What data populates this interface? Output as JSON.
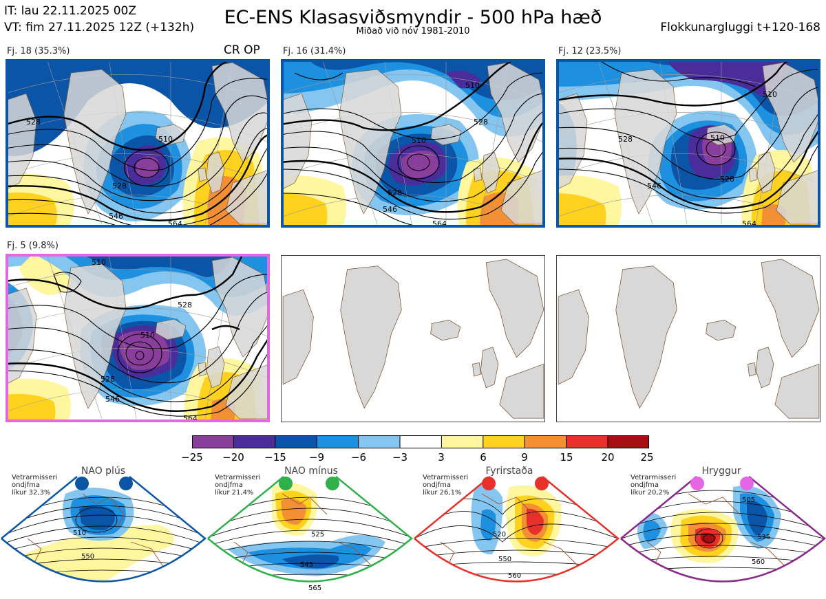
{
  "header": {
    "init_time": "IT: lau 22.11.2025 00Z",
    "valid_time": "VT: fim 27.11.2025 12Z  (+132h)",
    "title": "EC-ENS Klasasviðsmyndir - 500 hPa hæð",
    "subtitle": "Miðað við nóv 1981-2010",
    "window": "Flokkunargluggi t+120-168"
  },
  "clusters": [
    {
      "label": "Fj. 18 (35.3%)",
      "tag": "CR OP",
      "frame_color": "#0a55a5",
      "contours": [
        "510",
        "528",
        "546",
        "564",
        "528"
      ]
    },
    {
      "label": "Fj. 16 (31.4%)",
      "tag": "",
      "frame_color": "#0a55a5",
      "contours": [
        "510",
        "528",
        "546",
        "564",
        "510",
        "528"
      ]
    },
    {
      "label": "Fj. 12 (23.5%)",
      "tag": "",
      "frame_color": "#0a55a5",
      "contours": [
        "510",
        "528",
        "546",
        "564",
        "510",
        "528"
      ]
    },
    {
      "label": "Fj. 5 (9.8%)",
      "tag": "",
      "frame_color": "#e466e4",
      "contours": [
        "510",
        "528",
        "546",
        "564",
        "510",
        "528"
      ]
    }
  ],
  "colorbar": {
    "ticks": [
      "−25",
      "−20",
      "−15",
      "−9",
      "−6",
      "−3",
      "3",
      "6",
      "9",
      "15",
      "20",
      "25"
    ],
    "colors": [
      "#8a3e9c",
      "#4a2c9a",
      "#0b55a8",
      "#1e90e0",
      "#84c6f0",
      "#ffffff",
      "#fff6a0",
      "#ffd21f",
      "#f39034",
      "#e8302a",
      "#a80d12"
    ]
  },
  "regimes": [
    {
      "name": "NAO plús",
      "info": [
        "Vetrarmisseri",
        "ondjfma",
        "líkur 32,3%"
      ],
      "border_color": "#0a55a5",
      "dot_color": "#0a55a5",
      "contours": [
        "510",
        "550"
      ]
    },
    {
      "name": "NAO mínus",
      "info": [
        "Vetrarmisseri",
        "ondjfma",
        "líkur 21,4%"
      ],
      "border_color": "#2eb04a",
      "dot_color": "#2eb04a",
      "contours": [
        "525",
        "545",
        "565"
      ]
    },
    {
      "name": "Fyrirstaða",
      "info": [
        "Vetrarmisseri",
        "ondjfma",
        "líkur 26,1%"
      ],
      "border_color": "#e8302a",
      "dot_color": "#e8302a",
      "contours": [
        "520",
        "550",
        "560"
      ]
    },
    {
      "name": "Hryggur",
      "info": [
        "Vetrarmisseri",
        "ondjfma",
        "líkur 20,2%"
      ],
      "border_color": "#8a2a8a",
      "dot_color": "#e466e4",
      "contours": [
        "505",
        "535",
        "560"
      ]
    }
  ]
}
